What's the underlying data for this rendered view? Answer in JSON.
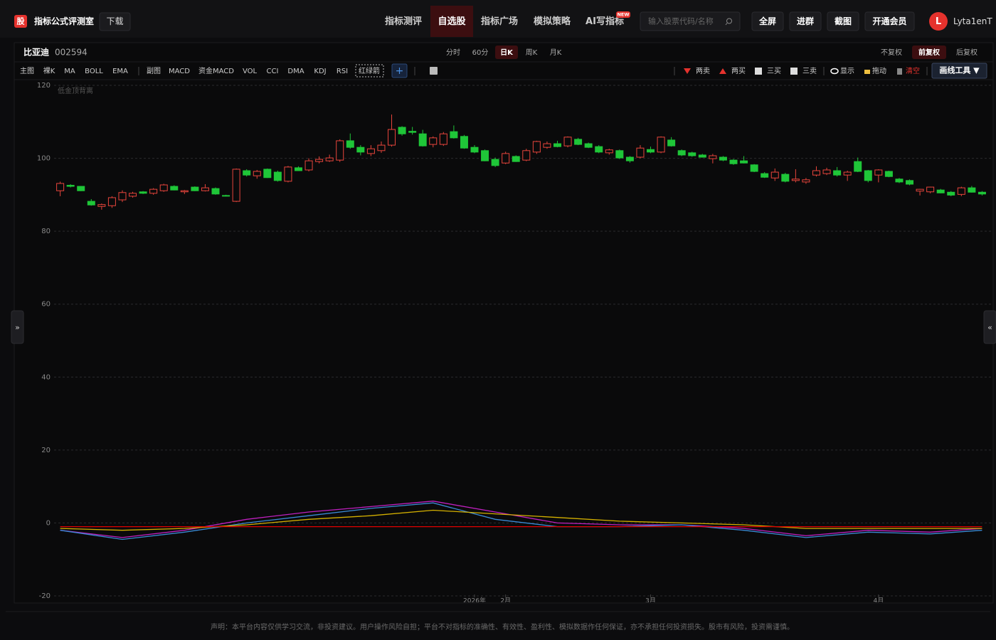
{
  "header": {
    "logo": "股",
    "site_name": "指标公式评测室",
    "download": "下载",
    "nav": [
      "指标测评",
      "自选股",
      "指标广场",
      "模拟策略",
      "AI写指标"
    ],
    "nav_active": 1,
    "new_badge": "NEW",
    "search_placeholder": "输入股票代码/名称",
    "buttons": [
      "全屏",
      "进群",
      "截图",
      "开通会员"
    ],
    "avatar": "L",
    "username": "Lyta1enT"
  },
  "stock": {
    "name": "比亚迪",
    "code": "002594",
    "periods": [
      "分时",
      "60分",
      "日K",
      "周K",
      "月K"
    ],
    "period_active": 2,
    "adjust": [
      "不复权",
      "前复权",
      "后复权"
    ],
    "adjust_active": 1
  },
  "toolbar": {
    "main_label": "主图",
    "main": [
      "裸K",
      "MA",
      "BOLL",
      "EMA"
    ],
    "sub_label": "副图",
    "sub": [
      "MACD",
      "资金MACD",
      "VOL",
      "CCI",
      "DMA",
      "KDJ",
      "RSI",
      "红绿箭"
    ],
    "add": "+",
    "signals": [
      "两卖",
      "两买",
      "三买",
      "三卖"
    ],
    "show": "显示",
    "drag": "拖动",
    "clear": "清空",
    "draw_tool": "画线工具 ▼"
  },
  "side_toggles": [
    "»",
    "«"
  ],
  "chart_data": {
    "type": "candlestick",
    "annotation": "低金顶背离",
    "up_color": "#e8453c",
    "down_color": "#1fc638",
    "ylim": [
      -20,
      120
    ],
    "yticks": [
      -20,
      0,
      20,
      40,
      60,
      80,
      100,
      120
    ],
    "grid": true,
    "xlim": [
      -4.3,
      90
    ],
    "xticks": [
      {
        "value": 40,
        "label": "2026年"
      },
      {
        "value": 43,
        "label": "2月"
      },
      {
        "value": 57,
        "label": "3月"
      },
      {
        "value": 79,
        "label": "4月"
      }
    ],
    "ohlc": [
      [
        91.1,
        93.6,
        89.6,
        93.1
      ],
      [
        92.6,
        92.9,
        92.0,
        92.3
      ],
      [
        92.3,
        92.4,
        91.0,
        91.1
      ],
      [
        88.2,
        88.8,
        87.0,
        87.2
      ],
      [
        86.8,
        87.6,
        85.9,
        87.3
      ],
      [
        87.0,
        89.6,
        86.4,
        89.2
      ],
      [
        88.6,
        91.2,
        88.0,
        90.6
      ],
      [
        89.6,
        90.8,
        89.2,
        90.4
      ],
      [
        90.8,
        91.0,
        90.2,
        90.4
      ],
      [
        90.4,
        91.8,
        90.0,
        91.5
      ],
      [
        91.1,
        93.0,
        90.8,
        92.7
      ],
      [
        92.3,
        92.6,
        91.2,
        91.3
      ],
      [
        90.8,
        91.3,
        90.2,
        91.1
      ],
      [
        92.1,
        92.3,
        91.0,
        91.1
      ],
      [
        91.1,
        92.9,
        90.9,
        91.9
      ],
      [
        91.7,
        92.0,
        90.0,
        90.2
      ],
      [
        89.8,
        90.0,
        89.5,
        89.7
      ],
      [
        88.2,
        97.2,
        88.0,
        97.0
      ],
      [
        96.6,
        97.0,
        95.0,
        95.4
      ],
      [
        95.2,
        96.8,
        94.4,
        96.4
      ],
      [
        97.0,
        97.2,
        94.6,
        94.7
      ],
      [
        96.2,
        96.6,
        93.6,
        93.9
      ],
      [
        93.7,
        97.9,
        93.4,
        97.6
      ],
      [
        97.4,
        97.8,
        96.5,
        96.6
      ],
      [
        96.8,
        100.0,
        96.4,
        99.3
      ],
      [
        99.1,
        100.5,
        98.6,
        99.7
      ],
      [
        99.3,
        101.0,
        99.0,
        100.1
      ],
      [
        99.5,
        105.2,
        99.0,
        104.8
      ],
      [
        104.8,
        106.8,
        102.6,
        103.0
      ],
      [
        103.0,
        103.6,
        100.8,
        101.7
      ],
      [
        101.3,
        103.6,
        100.6,
        102.6
      ],
      [
        102.1,
        104.6,
        101.5,
        103.6
      ],
      [
        103.6,
        112.0,
        103.2,
        107.9
      ],
      [
        108.5,
        108.8,
        106.2,
        106.7
      ],
      [
        107.4,
        108.6,
        106.5,
        107.1
      ],
      [
        106.7,
        107.8,
        103.2,
        103.4
      ],
      [
        103.8,
        106.0,
        103.0,
        105.6
      ],
      [
        103.8,
        107.2,
        103.4,
        106.7
      ],
      [
        107.3,
        109.0,
        105.4,
        105.6
      ],
      [
        106.0,
        106.4,
        102.6,
        102.8
      ],
      [
        103.0,
        103.6,
        101.4,
        101.7
      ],
      [
        102.1,
        102.4,
        99.2,
        99.3
      ],
      [
        99.7,
        100.2,
        97.6,
        98.0
      ],
      [
        98.7,
        101.8,
        98.4,
        101.3
      ],
      [
        100.5,
        100.8,
        99.0,
        99.1
      ],
      [
        99.5,
        102.6,
        99.2,
        102.1
      ],
      [
        101.7,
        104.8,
        101.2,
        104.6
      ],
      [
        103.0,
        104.6,
        102.6,
        104.0
      ],
      [
        104.0,
        104.8,
        103.0,
        103.2
      ],
      [
        103.4,
        106.0,
        103.0,
        105.8
      ],
      [
        105.2,
        105.6,
        103.6,
        103.8
      ],
      [
        104.0,
        104.3,
        102.8,
        103.0
      ],
      [
        103.2,
        103.6,
        101.4,
        101.7
      ],
      [
        101.5,
        102.6,
        101.0,
        102.3
      ],
      [
        102.1,
        102.4,
        99.8,
        100.1
      ],
      [
        100.3,
        100.6,
        98.8,
        99.3
      ],
      [
        100.3,
        103.6,
        100.0,
        102.8
      ],
      [
        102.4,
        103.2,
        101.4,
        101.7
      ],
      [
        101.7,
        106.0,
        101.4,
        105.8
      ],
      [
        105.0,
        105.8,
        103.2,
        103.4
      ],
      [
        102.1,
        102.4,
        100.6,
        100.9
      ],
      [
        101.5,
        101.8,
        100.4,
        100.7
      ],
      [
        100.9,
        101.2,
        100.2,
        100.3
      ],
      [
        99.9,
        101.2,
        98.6,
        100.7
      ],
      [
        100.3,
        100.6,
        99.2,
        99.5
      ],
      [
        99.5,
        99.8,
        98.2,
        98.5
      ],
      [
        99.3,
        100.6,
        98.6,
        98.7
      ],
      [
        98.2,
        98.4,
        96.2,
        96.4
      ],
      [
        95.8,
        96.2,
        94.6,
        94.8
      ],
      [
        94.6,
        97.2,
        93.8,
        96.2
      ],
      [
        95.6,
        96.0,
        93.4,
        93.7
      ],
      [
        93.9,
        97.0,
        93.4,
        94.3
      ],
      [
        93.5,
        94.6,
        93.0,
        94.1
      ],
      [
        95.4,
        97.8,
        95.0,
        96.6
      ],
      [
        95.8,
        97.4,
        95.4,
        96.8
      ],
      [
        96.6,
        97.6,
        95.0,
        95.4
      ],
      [
        95.4,
        96.6,
        93.8,
        96.2
      ],
      [
        99.1,
        100.2,
        96.2,
        96.4
      ],
      [
        96.6,
        96.8,
        93.4,
        93.9
      ],
      [
        95.4,
        97.0,
        93.4,
        96.8
      ],
      [
        96.4,
        96.6,
        94.8,
        95.0
      ],
      [
        94.3,
        94.6,
        93.2,
        93.5
      ],
      [
        93.9,
        94.2,
        92.6,
        92.9
      ],
      [
        91.0,
        91.6,
        89.8,
        91.5
      ],
      [
        90.8,
        92.2,
        90.4,
        92.1
      ],
      [
        91.3,
        91.6,
        90.4,
        90.5
      ],
      [
        90.7,
        91.0,
        89.6,
        89.9
      ],
      [
        90.1,
        92.2,
        89.6,
        91.9
      ],
      [
        91.9,
        92.4,
        90.6,
        90.7
      ],
      [
        90.7,
        91.0,
        89.8,
        90.2
      ]
    ],
    "lines": [
      {
        "color": "#c020c0",
        "x": [
          0,
          6,
          12,
          18,
          24,
          30,
          36,
          42,
          48,
          54,
          60,
          66,
          72,
          78,
          84,
          89
        ],
        "values": [
          -2,
          -4,
          -2,
          1,
          3,
          4.5,
          6,
          3,
          0,
          -0.5,
          -0.5,
          -1.5,
          -3.5,
          -2,
          -2.5,
          -1.5
        ]
      },
      {
        "color": "#3a8ad5",
        "x": [
          0,
          6,
          12,
          18,
          24,
          30,
          36,
          42,
          48,
          54,
          60,
          66,
          72,
          78,
          84,
          89
        ],
        "values": [
          -2,
          -4.5,
          -2.5,
          0,
          2,
          4,
          5.5,
          1,
          -1,
          -1,
          -0.5,
          -2,
          -4,
          -2.5,
          -3,
          -2
        ]
      },
      {
        "color": "#d4b000",
        "x": [
          0,
          6,
          12,
          18,
          24,
          30,
          36,
          42,
          48,
          54,
          60,
          66,
          72,
          78,
          84,
          89
        ],
        "values": [
          -1.5,
          -2,
          -1.5,
          -0.5,
          1,
          2,
          3.5,
          2.5,
          1.5,
          0.5,
          0,
          -0.5,
          -1.5,
          -1.5,
          -1.5,
          -1.5
        ]
      },
      {
        "color": "#e00000",
        "x": [
          0,
          6,
          12,
          18,
          24,
          30,
          36,
          42,
          48,
          54,
          60,
          66,
          72,
          78,
          84,
          89
        ],
        "values": [
          -1,
          -1,
          -1,
          -1,
          -1,
          -1,
          -1,
          -1,
          -1,
          -1,
          -1,
          -1,
          -1,
          -1,
          -1,
          -1
        ]
      }
    ]
  },
  "footer": "声明：本平台内容仅供学习交流，非投资建议。用户操作风险自担；平台不对指标的准确性、有效性、盈利性、模拟数据作任何保证，亦不承担任何投资损失。股市有风险，投资需谨慎。"
}
